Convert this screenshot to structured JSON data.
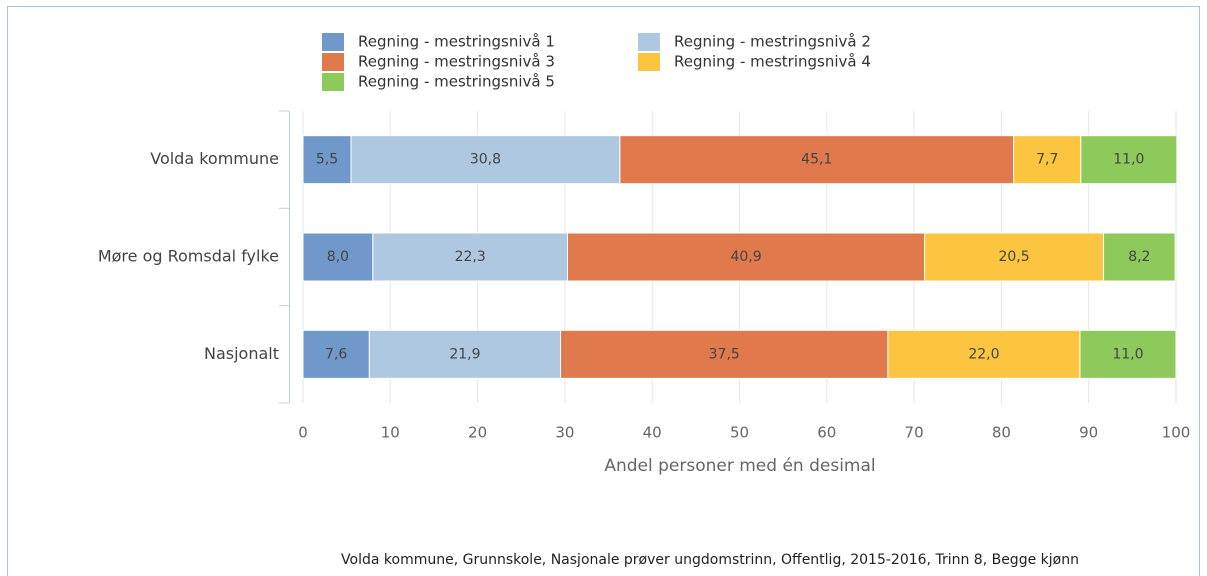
{
  "chart_data": {
    "type": "stacked_barh",
    "categories": [
      "Volda kommune",
      "Møre og Romsdal fylke",
      "Nasjonalt"
    ],
    "series": [
      {
        "name": "Regning - mestringsnivå 1",
        "color": "#7198ca",
        "values": [
          5.5,
          8.0,
          7.6
        ],
        "value_labels": [
          "5,5",
          "8,0",
          "7,6"
        ]
      },
      {
        "name": "Regning - mestringsnivå 2",
        "color": "#afc8e2",
        "values": [
          30.8,
          22.3,
          21.9
        ],
        "value_labels": [
          "30,8",
          "22,3",
          "21,9"
        ]
      },
      {
        "name": "Regning - mestringsnivå 3",
        "color": "#e0794b",
        "values": [
          45.1,
          40.9,
          37.5
        ],
        "value_labels": [
          "45,1",
          "40,9",
          "37,5"
        ]
      },
      {
        "name": "Regning - mestringsnivå 4",
        "color": "#fbc53f",
        "values": [
          7.7,
          20.5,
          22.0
        ],
        "value_labels": [
          "7,7",
          "20,5",
          "22,0"
        ]
      },
      {
        "name": "Regning - mestringsnivå 5",
        "color": "#8ec95b",
        "values": [
          11.0,
          8.2,
          11.0
        ],
        "value_labels": [
          "11,0",
          "8,2",
          "11,0"
        ]
      }
    ],
    "xlabel": "Andel personer med én desimal",
    "xlim": [
      0,
      100
    ],
    "xticks": [
      0,
      10,
      20,
      30,
      40,
      50,
      60,
      70,
      80,
      90,
      100
    ],
    "grid": true,
    "legend": "top",
    "caption": "Volda kommune, Grunnskole, Nasjonale prøver ungdomstrinn, Offentlig, 2015-2016, Trinn 8, Begge kjønn"
  }
}
